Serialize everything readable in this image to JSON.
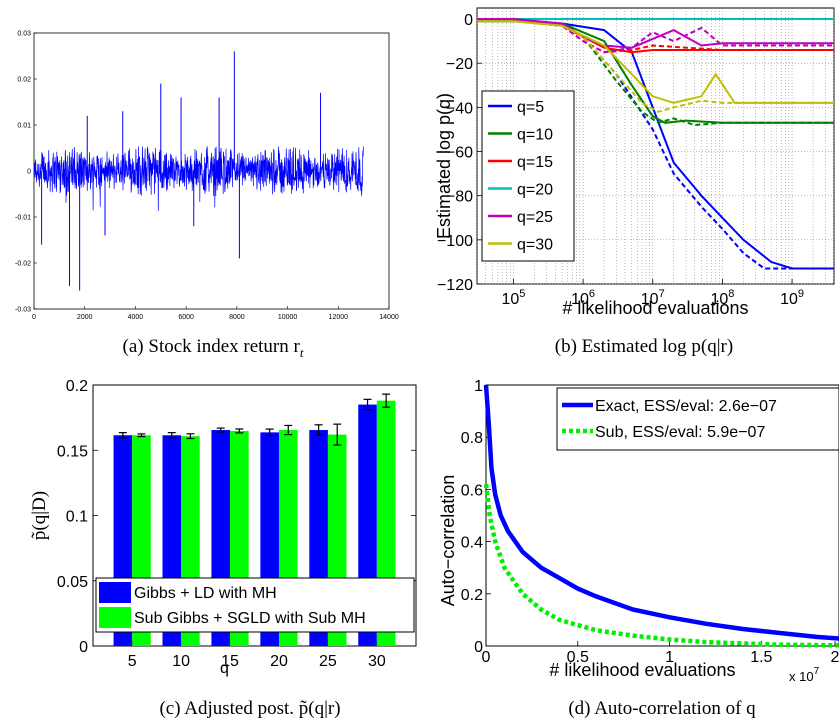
{
  "captions": {
    "a": "(a)  Stock index return r",
    "a_sub": "t",
    "b": "(b)  Estimated log p(q|r)",
    "c": "(c)  Adjusted post. p̃(q|r)",
    "d": "(d)  Auto-correlation of q"
  },
  "chart_data": [
    {
      "id": "a",
      "type": "line",
      "title": "",
      "xlabel": "",
      "ylabel": "",
      "xlim": [
        0,
        14000
      ],
      "ylim": [
        -0.03,
        0.03
      ],
      "x_ticks": [
        "0",
        "2000",
        "4000",
        "6000",
        "8000",
        "10000",
        "12000",
        "14000"
      ],
      "y_ticks": [
        "-0.03",
        "-0.02",
        "-0.01",
        "0",
        "0.01",
        "0.02",
        "0.03"
      ],
      "n_points": 13000,
      "series": [
        {
          "color": "#0000ff"
        }
      ],
      "spikes": [
        [
          300,
          -0.016
        ],
        [
          1400,
          -0.019
        ],
        [
          1800,
          -0.026
        ],
        [
          1400,
          -0.025
        ],
        [
          2800,
          -0.014
        ],
        [
          5000,
          0.019
        ],
        [
          7900,
          0.026
        ],
        [
          7300,
          0.016
        ],
        [
          8100,
          -0.019
        ],
        [
          11300,
          0.017
        ],
        [
          6300,
          -0.012
        ],
        [
          3500,
          0.013
        ],
        [
          2100,
          0.012
        ],
        [
          5800,
          0.016
        ]
      ]
    },
    {
      "id": "b",
      "type": "line",
      "xlabel": "# likelihood evaluations",
      "ylabel": "Estimated log p(q)",
      "xscale": "log",
      "xlim": [
        30000,
        4000000000
      ],
      "ylim": [
        -120,
        5
      ],
      "x_ticks": [
        "10^5",
        "10^6",
        "10^7",
        "10^8",
        "10^9"
      ],
      "y_ticks": [
        "0",
        "−20",
        "−40",
        "−60",
        "−80",
        "−100",
        "−120"
      ],
      "grid": true,
      "legend": "bottom-left",
      "series": [
        {
          "name": "q=5",
          "color": "#0000ff",
          "solid": [
            [
              10000.0,
              -1
            ],
            [
              100000.0,
              -1
            ],
            [
              500000.0,
              -2
            ],
            [
              2000000.0,
              -5
            ],
            [
              5000000.0,
              -15
            ],
            [
              10000000.0,
              -40
            ],
            [
              20000000.0,
              -65
            ],
            [
              50000000.0,
              -80
            ],
            [
              100000000.0,
              -90
            ],
            [
              200000000.0,
              -100
            ],
            [
              500000000.0,
              -110
            ],
            [
              1000000000.0,
              -113
            ],
            [
              4000000000.0,
              -113
            ]
          ],
          "dashed": [
            [
              10000.0,
              -1
            ],
            [
              100000.0,
              -1
            ],
            [
              500000.0,
              -3
            ],
            [
              1000000.0,
              -8
            ],
            [
              3000000.0,
              -25
            ],
            [
              10000000.0,
              -50
            ],
            [
              20000000.0,
              -70
            ],
            [
              50000000.0,
              -85
            ],
            [
              100000000.0,
              -95
            ],
            [
              200000000.0,
              -106
            ],
            [
              400000000.0,
              -113
            ],
            [
              1000000000.0,
              -113
            ],
            [
              4000000000.0,
              -113
            ]
          ]
        },
        {
          "name": "q=10",
          "color": "#008000",
          "solid": [
            [
              10000.0,
              -1
            ],
            [
              100000.0,
              -1
            ],
            [
              500000.0,
              -2
            ],
            [
              2000000.0,
              -10
            ],
            [
              5000000.0,
              -30
            ],
            [
              10000000.0,
              -44
            ],
            [
              15000000.0,
              -47
            ],
            [
              30000000.0,
              -46
            ],
            [
              100000000.0,
              -47
            ],
            [
              1000000000.0,
              -47
            ],
            [
              4000000000.0,
              -47
            ]
          ],
          "dashed": [
            [
              10000.0,
              -1
            ],
            [
              100000.0,
              -1
            ],
            [
              500000.0,
              -3
            ],
            [
              1000000.0,
              -8
            ],
            [
              3000000.0,
              -28
            ],
            [
              7000000.0,
              -42
            ],
            [
              12000000.0,
              -47
            ],
            [
              20000000.0,
              -45
            ],
            [
              40000000.0,
              -48
            ],
            [
              100000000.0,
              -47
            ],
            [
              4000000000.0,
              -47
            ]
          ]
        },
        {
          "name": "q=15",
          "color": "#ff0000",
          "solid": [
            [
              10000.0,
              0
            ],
            [
              100000.0,
              0
            ],
            [
              500000.0,
              -3
            ],
            [
              1000000.0,
              -8
            ],
            [
              2000000.0,
              -13
            ],
            [
              5000000.0,
              -15
            ],
            [
              10000000.0,
              -14
            ],
            [
              100000000.0,
              -14
            ],
            [
              4000000000.0,
              -14
            ]
          ],
          "dashed": [
            [
              10000.0,
              0
            ],
            [
              100000.0,
              0
            ],
            [
              500000.0,
              -3
            ],
            [
              1000000.0,
              -10
            ],
            [
              2000000.0,
              -15
            ],
            [
              5000000.0,
              -14
            ],
            [
              10000000.0,
              -12
            ],
            [
              100000000.0,
              -14
            ],
            [
              4000000000.0,
              -14
            ]
          ]
        },
        {
          "name": "q=20",
          "color": "#00bfbf",
          "solid": [
            [
              10000.0,
              0
            ],
            [
              4000000000.0,
              0
            ]
          ],
          "dashed": [
            [
              10000.0,
              0
            ],
            [
              4000000000.0,
              0
            ]
          ]
        },
        {
          "name": "q=25",
          "color": "#bf00bf",
          "solid": [
            [
              10000.0,
              0
            ],
            [
              100000.0,
              0
            ],
            [
              500000.0,
              -2
            ],
            [
              1000000.0,
              -8
            ],
            [
              2000000.0,
              -12
            ],
            [
              5000000.0,
              -13
            ],
            [
              10000000.0,
              -9
            ],
            [
              20000000.0,
              -5
            ],
            [
              50000000.0,
              -12
            ],
            [
              100000000.0,
              -11
            ],
            [
              4000000000.0,
              -11
            ]
          ],
          "dashed": [
            [
              10000.0,
              0
            ],
            [
              100000.0,
              0
            ],
            [
              500000.0,
              -3
            ],
            [
              1000000.0,
              -10
            ],
            [
              2000000.0,
              -15
            ],
            [
              5000000.0,
              -13
            ],
            [
              10000000.0,
              -6
            ],
            [
              20000000.0,
              -10
            ],
            [
              50000000.0,
              -4
            ],
            [
              100000000.0,
              -12
            ],
            [
              4000000000.0,
              -12
            ]
          ]
        },
        {
          "name": "q=30",
          "color": "#bfbf00",
          "solid": [
            [
              10000.0,
              -1
            ],
            [
              100000.0,
              -1
            ],
            [
              500000.0,
              -3
            ],
            [
              2000000.0,
              -12
            ],
            [
              5000000.0,
              -25
            ],
            [
              10000000.0,
              -35
            ],
            [
              20000000.0,
              -38
            ],
            [
              50000000.0,
              -35
            ],
            [
              80000000.0,
              -25
            ],
            [
              150000000.0,
              -38
            ],
            [
              500000000.0,
              -38
            ],
            [
              4000000000.0,
              -38
            ]
          ],
          "dashed": [
            [
              10000.0,
              -1
            ],
            [
              100000.0,
              -1
            ],
            [
              500000.0,
              -3
            ],
            [
              1000000.0,
              -8
            ],
            [
              3000000.0,
              -25
            ],
            [
              7000000.0,
              -38
            ],
            [
              12000000.0,
              -42
            ],
            [
              20000000.0,
              -40
            ],
            [
              50000000.0,
              -37
            ],
            [
              100000000.0,
              -38
            ],
            [
              4000000000.0,
              -38
            ]
          ]
        }
      ]
    },
    {
      "id": "c",
      "type": "bar",
      "categories": [
        "5",
        "10",
        "15",
        "20",
        "25",
        "30"
      ],
      "xlabel": "q",
      "ylabel": "p̃(q|D)",
      "ylim": [
        0,
        0.2
      ],
      "y_ticks": [
        "0",
        "0.05",
        "0.1",
        "0.15",
        "0.2"
      ],
      "legend": "bottom",
      "series": [
        {
          "name": "Gibbs + LD with MH",
          "color": "#0000ff",
          "values": [
            0.1615,
            0.1615,
            0.1655,
            0.1637,
            0.1655,
            0.185
          ],
          "err": [
            0.002,
            0.002,
            0.0015,
            0.0025,
            0.004,
            0.004
          ]
        },
        {
          "name": "Sub Gibbs + SGLD with Sub MH",
          "color": "#00ff00",
          "values": [
            0.1615,
            0.1608,
            0.1648,
            0.1655,
            0.162,
            0.188
          ],
          "err": [
            0.001,
            0.0018,
            0.0015,
            0.0035,
            0.008,
            0.005
          ]
        }
      ]
    },
    {
      "id": "d",
      "type": "line",
      "xlabel": "# likelihood evaluations",
      "ylabel": "Auto−correlation",
      "xlim": [
        0,
        20000000
      ],
      "ylim": [
        0,
        1
      ],
      "x_ticks": [
        "0",
        "0.5",
        "1",
        "1.5",
        "2"
      ],
      "x_multiplier": "x 10",
      "x_multiplier_exp": "7",
      "y_ticks": [
        "0",
        "0.2",
        "0.4",
        "0.6",
        "0.8",
        "1"
      ],
      "legend": "top-right",
      "series": [
        {
          "name": "Exact, ESS/eval: 2.6e−07",
          "color": "#0000ff",
          "style": "solid",
          "values_xy": [
            [
              0,
              1
            ],
            [
              150000,
              0.85
            ],
            [
              300000,
              0.68
            ],
            [
              500000,
              0.58
            ],
            [
              800000,
              0.5
            ],
            [
              1200000,
              0.44
            ],
            [
              2000000,
              0.36
            ],
            [
              3000000,
              0.3
            ],
            [
              4000000,
              0.26
            ],
            [
              5000000,
              0.22
            ],
            [
              6000000,
              0.19
            ],
            [
              8000000,
              0.14
            ],
            [
              10000000,
              0.11
            ],
            [
              12000000,
              0.085
            ],
            [
              14000000,
              0.065
            ],
            [
              16000000,
              0.05
            ],
            [
              18000000,
              0.035
            ],
            [
              20000000,
              0.025
            ]
          ]
        },
        {
          "name": "Sub,    ESS/eval: 5.9e−07",
          "color": "#00ee00",
          "style": "dotted",
          "values_xy": [
            [
              0,
              0.62
            ],
            [
              200000,
              0.5
            ],
            [
              500000,
              0.4
            ],
            [
              1000000,
              0.3
            ],
            [
              2000000,
              0.2
            ],
            [
              3000000,
              0.14
            ],
            [
              4000000,
              0.1
            ],
            [
              5000000,
              0.08
            ],
            [
              6000000,
              0.06
            ],
            [
              8000000,
              0.04
            ],
            [
              10000000,
              0.025
            ],
            [
              12000000,
              0.015
            ],
            [
              16000000,
              0.005
            ],
            [
              20000000,
              0.002
            ]
          ]
        }
      ]
    }
  ]
}
